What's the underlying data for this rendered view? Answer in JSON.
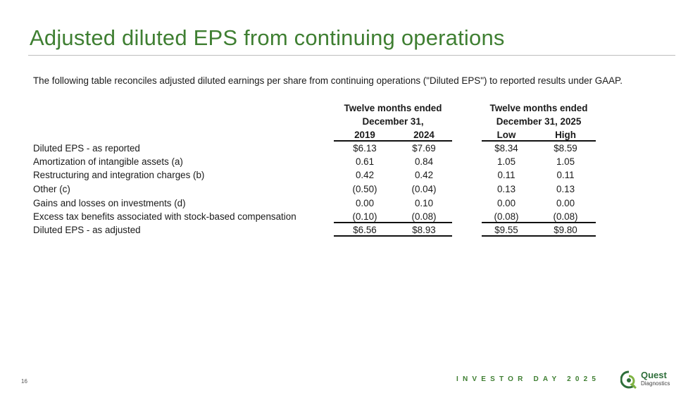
{
  "title": "Adjusted diluted EPS from continuing operations",
  "subtitle": "The following table reconciles adjusted diluted earnings per share from continuing operations (\"Diluted EPS\") to reported results under GAAP.",
  "table": {
    "group1": {
      "line1": "Twelve months ended",
      "line2": "December 31,"
    },
    "group2": {
      "line1": "Twelve months ended",
      "line2": "December 31, 2025"
    },
    "columns": [
      "2019",
      "2024",
      "Low",
      "High"
    ],
    "rows": [
      {
        "label": "Diluted EPS - as reported",
        "values": [
          "$6.13",
          "$7.69",
          "$8.34",
          "$8.59"
        ]
      },
      {
        "label": "Amortization of intangible assets (a)",
        "values": [
          "0.61",
          "0.84",
          "1.05",
          "1.05"
        ]
      },
      {
        "label": "Restructuring and integration charges (b)",
        "values": [
          "0.42",
          "0.42",
          "0.11",
          "0.11"
        ]
      },
      {
        "label": "Other (c)",
        "values": [
          "(0.50)",
          "(0.04)",
          "0.13",
          "0.13"
        ]
      },
      {
        "label": "Gains and losses on investments (d)",
        "values": [
          "0.00",
          "0.10",
          "0.00",
          "0.00"
        ]
      },
      {
        "label": "Excess tax benefits associated with stock-based compensation",
        "values": [
          "(0.10)",
          "(0.08)",
          "(0.08)",
          "(0.08)"
        ]
      },
      {
        "label": "Diluted EPS - as adjusted",
        "values": [
          "$6.56",
          "$8.93",
          "$9.55",
          "$9.80"
        ]
      }
    ]
  },
  "footer": {
    "page_number": "16",
    "event": "INVESTOR DAY 2025",
    "logo_name": "Quest",
    "logo_sub": "Diagnostics",
    "brand_color": "#3f7f32"
  }
}
